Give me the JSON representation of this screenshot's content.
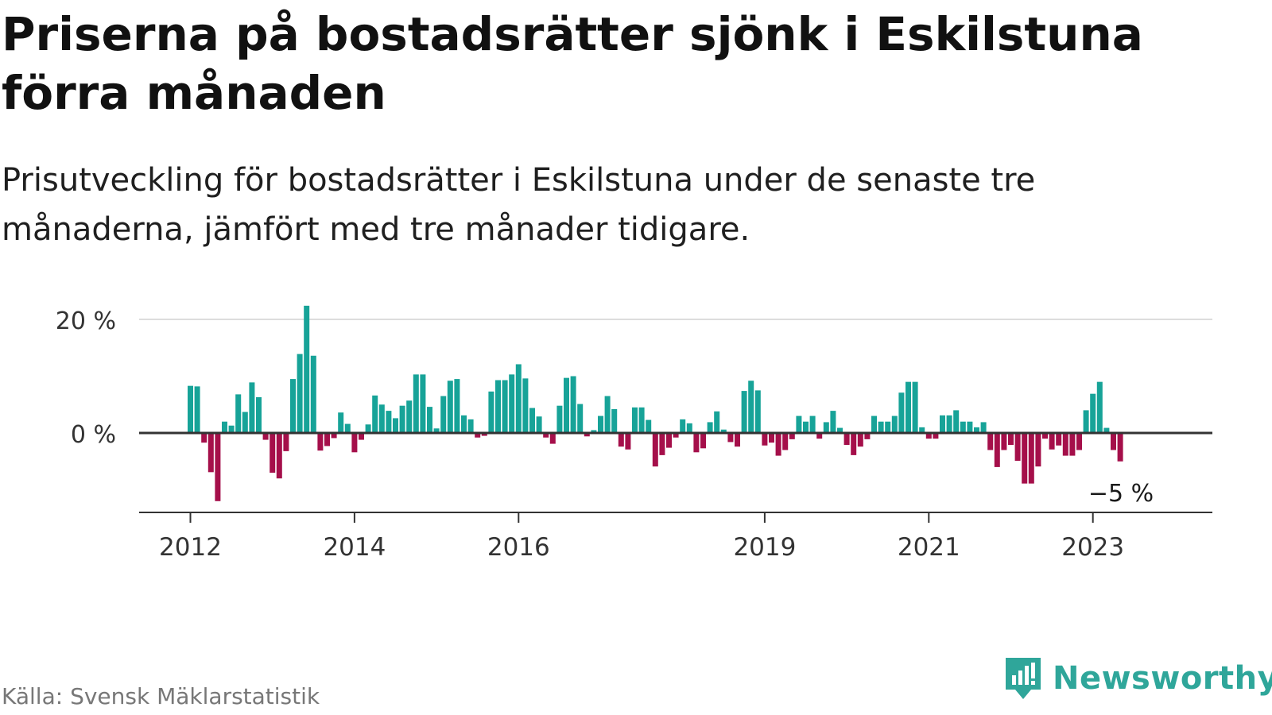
{
  "header": {
    "title": "Priserna på bostadsrätter sjönk i Eskilstuna förra månaden",
    "subtitle": "Prisutveckling för bostadsrätter i Eskilstuna under de senaste tre månaderna, jämfört med tre månader tidigare."
  },
  "footer": {
    "source": "Källa: Svensk Mäklarstatistik",
    "brand": "Newsworthy",
    "brand_icon": "bar-chart-logo-icon"
  },
  "colors": {
    "positive": "#17a398",
    "negative": "#a50f4a",
    "brand": "#2fa69a",
    "gridline": "#dddddd",
    "axis": "#333333"
  },
  "chart_data": {
    "type": "bar",
    "unit": "%",
    "x_start": "2012-01",
    "y_ticks": [
      0,
      20
    ],
    "y_tick_labels": [
      "0 %",
      "20 %"
    ],
    "x_tick_labels": [
      {
        "label": "2012",
        "date": "2012-01"
      },
      {
        "label": "2014",
        "date": "2014-01"
      },
      {
        "label": "2016",
        "date": "2016-01"
      },
      {
        "label": "2019",
        "date": "2019-01"
      },
      {
        "label": "2021",
        "date": "2021-01"
      },
      {
        "label": "2023",
        "date": "2023-01"
      }
    ],
    "ylim": [
      -14,
      22.5
    ],
    "grid": true,
    "last_label": "−5 %",
    "values": [
      8.3,
      8.2,
      -1.7,
      -6.9,
      -12.0,
      2.0,
      1.3,
      6.8,
      3.7,
      8.9,
      6.3,
      -1.2,
      -7.0,
      -8.0,
      -3.2,
      9.5,
      13.9,
      22.4,
      13.6,
      -3.1,
      -2.3,
      -0.9,
      3.6,
      1.6,
      -3.4,
      -1.2,
      1.5,
      6.6,
      5.0,
      3.9,
      2.6,
      4.8,
      5.7,
      10.3,
      10.3,
      4.6,
      0.8,
      6.5,
      9.2,
      9.5,
      3.1,
      2.4,
      -0.8,
      -0.5,
      7.3,
      9.3,
      9.3,
      10.3,
      12.1,
      9.6,
      4.4,
      2.9,
      -0.8,
      -1.9,
      4.8,
      9.7,
      10.0,
      5.1,
      -0.6,
      0.5,
      3.0,
      6.5,
      4.2,
      -2.4,
      -2.9,
      4.5,
      4.5,
      2.3,
      -5.9,
      -3.9,
      -2.6,
      -0.8,
      2.4,
      1.7,
      -3.4,
      -2.7,
      1.9,
      3.8,
      0.6,
      -1.6,
      -2.4,
      7.4,
      9.2,
      7.5,
      -2.2,
      -1.7,
      -4.0,
      -3.0,
      -1.1,
      3.0,
      2.0,
      3.0,
      -1.0,
      1.9,
      3.9,
      0.9,
      -2.1,
      -3.9,
      -2.4,
      -1.1,
      3.0,
      2.0,
      2.0,
      3.0,
      7.1,
      9.0,
      9.0,
      1.0,
      -1.0,
      -1.0,
      3.1,
      3.1,
      4.0,
      2.0,
      2.0,
      1.0,
      1.9,
      -3.0,
      -6.0,
      -3.0,
      -2.1,
      -4.9,
      -8.9,
      -8.9,
      -5.9,
      -1.0,
      -2.9,
      -2.2,
      -4.0,
      -4.0,
      -3.0,
      4.0,
      6.9,
      9.0,
      0.9,
      -3.0,
      -5.0
    ]
  }
}
